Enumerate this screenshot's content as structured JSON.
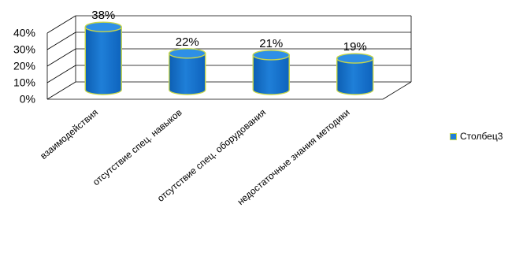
{
  "chart_data": {
    "type": "bar",
    "title": "",
    "xlabel": "",
    "ylabel": "",
    "categories": [
      "взаимодействия",
      "отсутствие спец. навыков",
      "отсутствие  спец. оборудования",
      "недостаточные знания методики"
    ],
    "series": [
      {
        "name": "Столбец3",
        "values": [
          38,
          22,
          21,
          19
        ],
        "color": "#1f7fd8",
        "outline": "#c7d64a"
      }
    ],
    "data_labels": [
      "38%",
      "22%",
      "21%",
      "19%"
    ],
    "yticks": [
      "0%",
      "10%",
      "20%",
      "30%",
      "40%"
    ],
    "ylim": [
      0,
      40
    ],
    "grid": true,
    "legend_position": "right",
    "bar_shape": "3d-cylinder"
  }
}
